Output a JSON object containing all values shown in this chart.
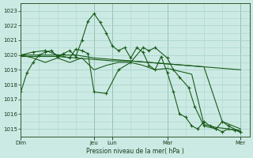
{
  "background_color": "#cceae4",
  "grid_color": "#aad4cc",
  "line_color": "#1a5c1a",
  "ylabel_text": "Pression niveau de la mer( hPa )",
  "ylim": [
    1014.5,
    1023.5
  ],
  "yticks": [
    1015,
    1016,
    1017,
    1018,
    1019,
    1020,
    1021,
    1022,
    1023
  ],
  "xtick_labels": [
    "Dim",
    "Jeu",
    "Lun",
    "Mar",
    "Mer"
  ],
  "xtick_positions": [
    0,
    96,
    120,
    192,
    288
  ],
  "vlines": [
    0,
    96,
    120,
    192,
    288
  ],
  "xlim": [
    0,
    300
  ],
  "series": [
    {
      "x": [
        0,
        8,
        16,
        24,
        32,
        40,
        48,
        56,
        64,
        72,
        80,
        88,
        96,
        104,
        112,
        120,
        128,
        136,
        144,
        152,
        160,
        168,
        176,
        184,
        192,
        200,
        208,
        216,
        224,
        232,
        240,
        248,
        256,
        264,
        272,
        280,
        288
      ],
      "y": [
        1017.5,
        1018.8,
        1019.5,
        1020.0,
        1020.2,
        1020.3,
        1019.9,
        1020.1,
        1020.3,
        1019.9,
        1021.0,
        1022.3,
        1022.8,
        1022.2,
        1021.5,
        1020.6,
        1020.3,
        1020.5,
        1019.8,
        1020.5,
        1020.2,
        1019.3,
        1019.0,
        1019.9,
        1018.8,
        1017.5,
        1016.0,
        1015.8,
        1015.2,
        1015.0,
        1015.5,
        1015.2,
        1015.0,
        1014.8,
        1015.0,
        1014.9,
        1014.8
      ],
      "marker": true
    },
    {
      "x": [
        0,
        24,
        48,
        72,
        96,
        120,
        144,
        168,
        192,
        216,
        240,
        264,
        288
      ],
      "y": [
        1020.0,
        1020.0,
        1020.0,
        1020.0,
        1019.8,
        1019.7,
        1019.6,
        1019.5,
        1019.4,
        1019.3,
        1019.2,
        1015.5,
        1015.0
      ],
      "marker": false
    },
    {
      "x": [
        0,
        24,
        48,
        72,
        96,
        120,
        144,
        168,
        192,
        216,
        240,
        264,
        288
      ],
      "y": [
        1019.9,
        1019.9,
        1019.9,
        1019.8,
        1019.7,
        1019.6,
        1019.6,
        1019.5,
        1019.4,
        1019.3,
        1019.2,
        1019.1,
        1019.0
      ],
      "marker": false
    },
    {
      "x": [
        0,
        16,
        32,
        48,
        64,
        80,
        96,
        112,
        128,
        144,
        160,
        176,
        192,
        208,
        224,
        240,
        256,
        272,
        288
      ],
      "y": [
        1020.0,
        1019.8,
        1019.5,
        1019.8,
        1019.5,
        1019.8,
        1019.0,
        1019.3,
        1019.5,
        1019.5,
        1019.3,
        1019.0,
        1019.1,
        1018.9,
        1018.7,
        1015.3,
        1015.1,
        1015.0,
        1014.9
      ],
      "marker": false
    },
    {
      "x": [
        0,
        16,
        32,
        48,
        64,
        72,
        80,
        88,
        96,
        112,
        128,
        144,
        160,
        168,
        176,
        192,
        200,
        208,
        220,
        228,
        240,
        256,
        264,
        272,
        288
      ],
      "y": [
        1020.0,
        1020.2,
        1020.3,
        1020.0,
        1019.8,
        1020.4,
        1020.3,
        1020.1,
        1017.5,
        1017.4,
        1019.0,
        1019.5,
        1020.5,
        1020.3,
        1020.5,
        1019.8,
        1019.0,
        1018.5,
        1017.8,
        1016.5,
        1015.2,
        1015.0,
        1015.5,
        1015.2,
        1014.8
      ],
      "marker": true
    }
  ]
}
